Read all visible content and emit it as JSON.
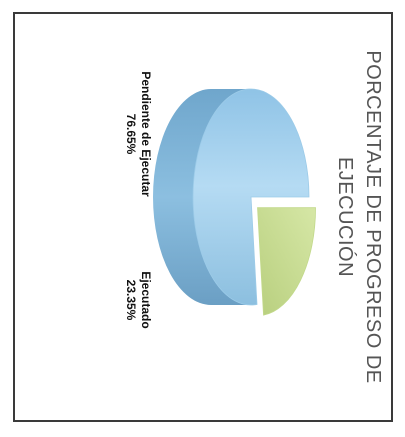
{
  "chart_data": {
    "type": "pie",
    "title": "PORCENTAJE DE PROGRESO DE EJECUCIÓN",
    "slices": [
      {
        "label": "Ejecutado",
        "value": 23.35,
        "value_label": "23.35%",
        "color": "#c7dc92",
        "exploded": true
      },
      {
        "label": "Pendiente de Ejecutar",
        "value": 76.65,
        "value_label": "76.65%",
        "color": "#a3d0ec",
        "exploded": false
      }
    ],
    "orientation": "rotated 90° clockwise"
  }
}
